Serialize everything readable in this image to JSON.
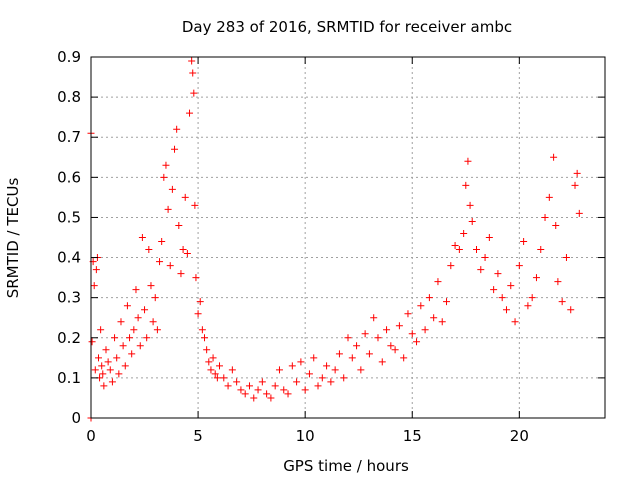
{
  "chart_data": {
    "type": "scatter",
    "title": "Day 283 of 2016, SRMTID for receiver ambc",
    "xlabel": "GPS time / hours",
    "ylabel": "SRMTID / TECUs",
    "xlim": [
      0,
      24
    ],
    "ylim": [
      0,
      0.9
    ],
    "xticks": [
      0,
      5,
      10,
      15,
      20
    ],
    "yticks": [
      0,
      0.1,
      0.2,
      0.3,
      0.4,
      0.5,
      0.6,
      0.7,
      0.8,
      0.9
    ],
    "grid": true,
    "marker": "+",
    "color": "#ff0000",
    "series": [
      {
        "name": "SRMTID",
        "x": [
          0.0,
          0.0,
          0.05,
          0.1,
          0.15,
          0.2,
          0.25,
          0.3,
          0.35,
          0.4,
          0.45,
          0.5,
          0.55,
          0.6,
          0.7,
          0.8,
          0.9,
          1.0,
          1.1,
          1.2,
          1.3,
          1.4,
          1.5,
          1.6,
          1.7,
          1.8,
          1.9,
          2.0,
          2.1,
          2.2,
          2.3,
          2.4,
          2.5,
          2.6,
          2.7,
          2.8,
          2.9,
          3.0,
          3.1,
          3.2,
          3.3,
          3.4,
          3.5,
          3.6,
          3.7,
          3.8,
          3.9,
          4.0,
          4.1,
          4.2,
          4.3,
          4.4,
          4.5,
          4.6,
          4.7,
          4.75,
          4.8,
          4.85,
          4.9,
          5.0,
          5.1,
          5.2,
          5.3,
          5.4,
          5.5,
          5.6,
          5.7,
          5.8,
          5.9,
          6.0,
          6.2,
          6.4,
          6.6,
          6.8,
          7.0,
          7.2,
          7.4,
          7.6,
          7.8,
          8.0,
          8.2,
          8.4,
          8.6,
          8.8,
          9.0,
          9.2,
          9.4,
          9.6,
          9.8,
          10.0,
          10.2,
          10.4,
          10.6,
          10.8,
          11.0,
          11.2,
          11.4,
          11.6,
          11.8,
          12.0,
          12.2,
          12.4,
          12.6,
          12.8,
          13.0,
          13.2,
          13.4,
          13.6,
          13.8,
          14.0,
          14.2,
          14.4,
          14.6,
          14.8,
          15.0,
          15.2,
          15.4,
          15.6,
          15.8,
          16.0,
          16.2,
          16.4,
          16.6,
          16.8,
          17.0,
          17.2,
          17.4,
          17.5,
          17.6,
          17.7,
          17.8,
          18.0,
          18.2,
          18.4,
          18.6,
          18.8,
          19.0,
          19.2,
          19.4,
          19.6,
          19.8,
          20.0,
          20.2,
          20.4,
          20.6,
          20.8,
          21.0,
          21.2,
          21.4,
          21.6,
          21.7,
          21.8,
          22.0,
          22.2,
          22.4,
          22.6,
          22.7,
          22.8
        ],
        "y": [
          0.71,
          0.0,
          0.19,
          0.39,
          0.33,
          0.12,
          0.37,
          0.4,
          0.15,
          0.1,
          0.22,
          0.13,
          0.11,
          0.08,
          0.17,
          0.14,
          0.12,
          0.09,
          0.2,
          0.15,
          0.11,
          0.24,
          0.18,
          0.13,
          0.28,
          0.2,
          0.16,
          0.22,
          0.32,
          0.25,
          0.18,
          0.45,
          0.27,
          0.2,
          0.42,
          0.33,
          0.24,
          0.3,
          0.22,
          0.39,
          0.44,
          0.6,
          0.63,
          0.52,
          0.38,
          0.57,
          0.67,
          0.72,
          0.48,
          0.36,
          0.42,
          0.55,
          0.41,
          0.76,
          0.89,
          0.86,
          0.81,
          0.53,
          0.35,
          0.26,
          0.29,
          0.22,
          0.2,
          0.17,
          0.14,
          0.12,
          0.15,
          0.11,
          0.1,
          0.13,
          0.1,
          0.08,
          0.12,
          0.09,
          0.07,
          0.06,
          0.08,
          0.05,
          0.07,
          0.09,
          0.06,
          0.05,
          0.08,
          0.12,
          0.07,
          0.06,
          0.13,
          0.09,
          0.14,
          0.07,
          0.11,
          0.15,
          0.08,
          0.1,
          0.13,
          0.09,
          0.12,
          0.16,
          0.1,
          0.2,
          0.15,
          0.18,
          0.12,
          0.21,
          0.16,
          0.25,
          0.2,
          0.14,
          0.22,
          0.18,
          0.17,
          0.23,
          0.15,
          0.26,
          0.21,
          0.19,
          0.28,
          0.22,
          0.3,
          0.25,
          0.34,
          0.24,
          0.29,
          0.38,
          0.43,
          0.42,
          0.46,
          0.58,
          0.64,
          0.53,
          0.49,
          0.42,
          0.37,
          0.4,
          0.45,
          0.32,
          0.36,
          0.3,
          0.27,
          0.33,
          0.24,
          0.38,
          0.44,
          0.28,
          0.3,
          0.35,
          0.42,
          0.5,
          0.55,
          0.65,
          0.48,
          0.34,
          0.29,
          0.4,
          0.27,
          0.58,
          0.61,
          0.51
        ]
      }
    ]
  }
}
